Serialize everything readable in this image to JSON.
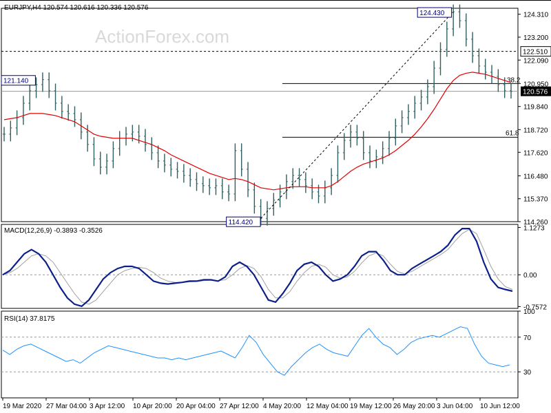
{
  "chart_data": {
    "type": "line",
    "title": "EURJPY,H4  120.574 120.616 120.336 120.576",
    "watermark": "ActionForex.com",
    "x_labels": [
      "19 Mar 2020",
      "27 Mar 04:00",
      "3 Apr 12:00",
      "10 Apr 20:00",
      "20 Apr 04:00",
      "27 Apr 12:00",
      "4 May 20:00",
      "12 May 04:00",
      "19 May 12:00",
      "26 May 20:00",
      "3 Jun 04:00",
      "10 Jun 12:00"
    ],
    "price_panel": {
      "y_ticks": [
        "124.310",
        "123.200",
        "122.090",
        "120.950",
        "119.840",
        "118.720",
        "117.620",
        "116.480",
        "115.370",
        "114.260"
      ],
      "ylim": [
        114.26,
        124.6
      ],
      "price": [
        118.5,
        118.8,
        119.3,
        120.0,
        120.6,
        120.9,
        121.14,
        120.6,
        120.0,
        119.6,
        119.5,
        119.2,
        118.6,
        118.0,
        117.3,
        116.9,
        117.2,
        117.8,
        118.3,
        118.5,
        118.6,
        118.4,
        118.0,
        117.6,
        117.2,
        117.0,
        116.8,
        116.7,
        116.5,
        116.3,
        116.1,
        116.0,
        115.9,
        116.0,
        115.7,
        115.6,
        117.7,
        116.8,
        115.8,
        115.0,
        114.42,
        114.9,
        115.3,
        115.7,
        116.2,
        116.5,
        116.3,
        116.0,
        115.7,
        115.5,
        115.9,
        116.5,
        117.6,
        118.2,
        118.6,
        118.3,
        117.6,
        117.2,
        117.4,
        117.8,
        118.3,
        118.9,
        119.3,
        119.6,
        120.0,
        120.3,
        120.8,
        121.7,
        122.6,
        123.6,
        124.43,
        124.0,
        123.1,
        122.3,
        121.8,
        121.5,
        121.3,
        120.9,
        120.6,
        120.576
      ],
      "ma": [
        119.2,
        119.25,
        119.3,
        119.4,
        119.5,
        119.5,
        119.5,
        119.45,
        119.4,
        119.3,
        119.2,
        119.1,
        118.9,
        118.7,
        118.5,
        118.4,
        118.35,
        118.3,
        118.3,
        118.3,
        118.3,
        118.2,
        118.1,
        118.0,
        117.85,
        117.7,
        117.5,
        117.35,
        117.2,
        117.05,
        116.9,
        116.75,
        116.6,
        116.5,
        116.4,
        116.3,
        116.35,
        116.3,
        116.2,
        116.05,
        115.9,
        115.85,
        115.8,
        115.85,
        115.9,
        115.95,
        115.95,
        115.95,
        115.9,
        115.9,
        115.9,
        116.0,
        116.2,
        116.45,
        116.7,
        116.9,
        117.05,
        117.15,
        117.25,
        117.35,
        117.5,
        117.7,
        117.95,
        118.2,
        118.5,
        118.85,
        119.25,
        119.7,
        120.2,
        120.7,
        121.1,
        121.35,
        121.45,
        121.5,
        121.45,
        121.4,
        121.3,
        121.2,
        121.1,
        121.0
      ],
      "levels": {
        "current": "120.576",
        "resistance": "122.510",
        "fib_38": "38.2",
        "fib_61": "61.8"
      },
      "callouts": {
        "high": "124.430",
        "low": "114.420",
        "left_high": "121.140"
      }
    },
    "macd_panel": {
      "label": "MACD(12,26,9) -0.3893 -0.3526",
      "y_ticks": [
        "1.1273",
        "0.00",
        "-0.7572"
      ],
      "ylim": [
        -0.8,
        1.2
      ],
      "macd": [
        0.0,
        0.1,
        0.3,
        0.5,
        0.6,
        0.5,
        0.3,
        0.0,
        -0.3,
        -0.55,
        -0.7,
        -0.75,
        -0.6,
        -0.35,
        -0.1,
        0.05,
        0.15,
        0.2,
        0.2,
        0.15,
        0.0,
        -0.15,
        -0.2,
        -0.22,
        -0.2,
        -0.18,
        -0.15,
        -0.15,
        -0.12,
        -0.12,
        -0.15,
        -0.05,
        0.2,
        0.3,
        0.2,
        0.0,
        -0.3,
        -0.6,
        -0.65,
        -0.45,
        -0.2,
        0.1,
        0.25,
        0.3,
        0.2,
        0.0,
        -0.15,
        -0.1,
        0.0,
        0.2,
        0.45,
        0.55,
        0.55,
        0.35,
        0.1,
        0.0,
        0.0,
        0.15,
        0.25,
        0.35,
        0.45,
        0.55,
        0.7,
        0.95,
        1.1,
        1.1,
        0.8,
        0.3,
        -0.1,
        -0.3,
        -0.35,
        -0.39
      ],
      "signal": [
        0.0,
        0.05,
        0.15,
        0.3,
        0.45,
        0.5,
        0.45,
        0.3,
        0.05,
        -0.2,
        -0.45,
        -0.65,
        -0.7,
        -0.6,
        -0.4,
        -0.2,
        0.0,
        0.1,
        0.15,
        0.18,
        0.15,
        0.05,
        -0.08,
        -0.15,
        -0.18,
        -0.18,
        -0.17,
        -0.16,
        -0.14,
        -0.13,
        -0.14,
        -0.12,
        0.0,
        0.15,
        0.22,
        0.15,
        -0.05,
        -0.35,
        -0.55,
        -0.55,
        -0.4,
        -0.15,
        0.05,
        0.2,
        0.25,
        0.18,
        0.0,
        -0.08,
        -0.05,
        0.08,
        0.28,
        0.45,
        0.52,
        0.45,
        0.25,
        0.08,
        0.02,
        0.08,
        0.18,
        0.28,
        0.38,
        0.48,
        0.6,
        0.8,
        0.98,
        1.08,
        0.98,
        0.6,
        0.2,
        -0.1,
        -0.28,
        -0.35
      ]
    },
    "rsi_panel": {
      "label": "RSI(14) 37.8175",
      "y_ticks": [
        "100",
        "70",
        "30"
      ],
      "ylim": [
        0,
        100
      ],
      "rsi": [
        55,
        50,
        56,
        60,
        62,
        58,
        54,
        50,
        46,
        42,
        44,
        40,
        46,
        52,
        56,
        60,
        58,
        56,
        54,
        52,
        50,
        48,
        46,
        46,
        44,
        46,
        44,
        46,
        48,
        50,
        52,
        54,
        50,
        46,
        58,
        72,
        64,
        50,
        40,
        30,
        26,
        36,
        44,
        52,
        58,
        62,
        56,
        52,
        50,
        48,
        60,
        72,
        80,
        70,
        62,
        58,
        50,
        56,
        64,
        68,
        70,
        72,
        70,
        74,
        78,
        82,
        80,
        62,
        48,
        40,
        38,
        36,
        38
      ]
    }
  }
}
